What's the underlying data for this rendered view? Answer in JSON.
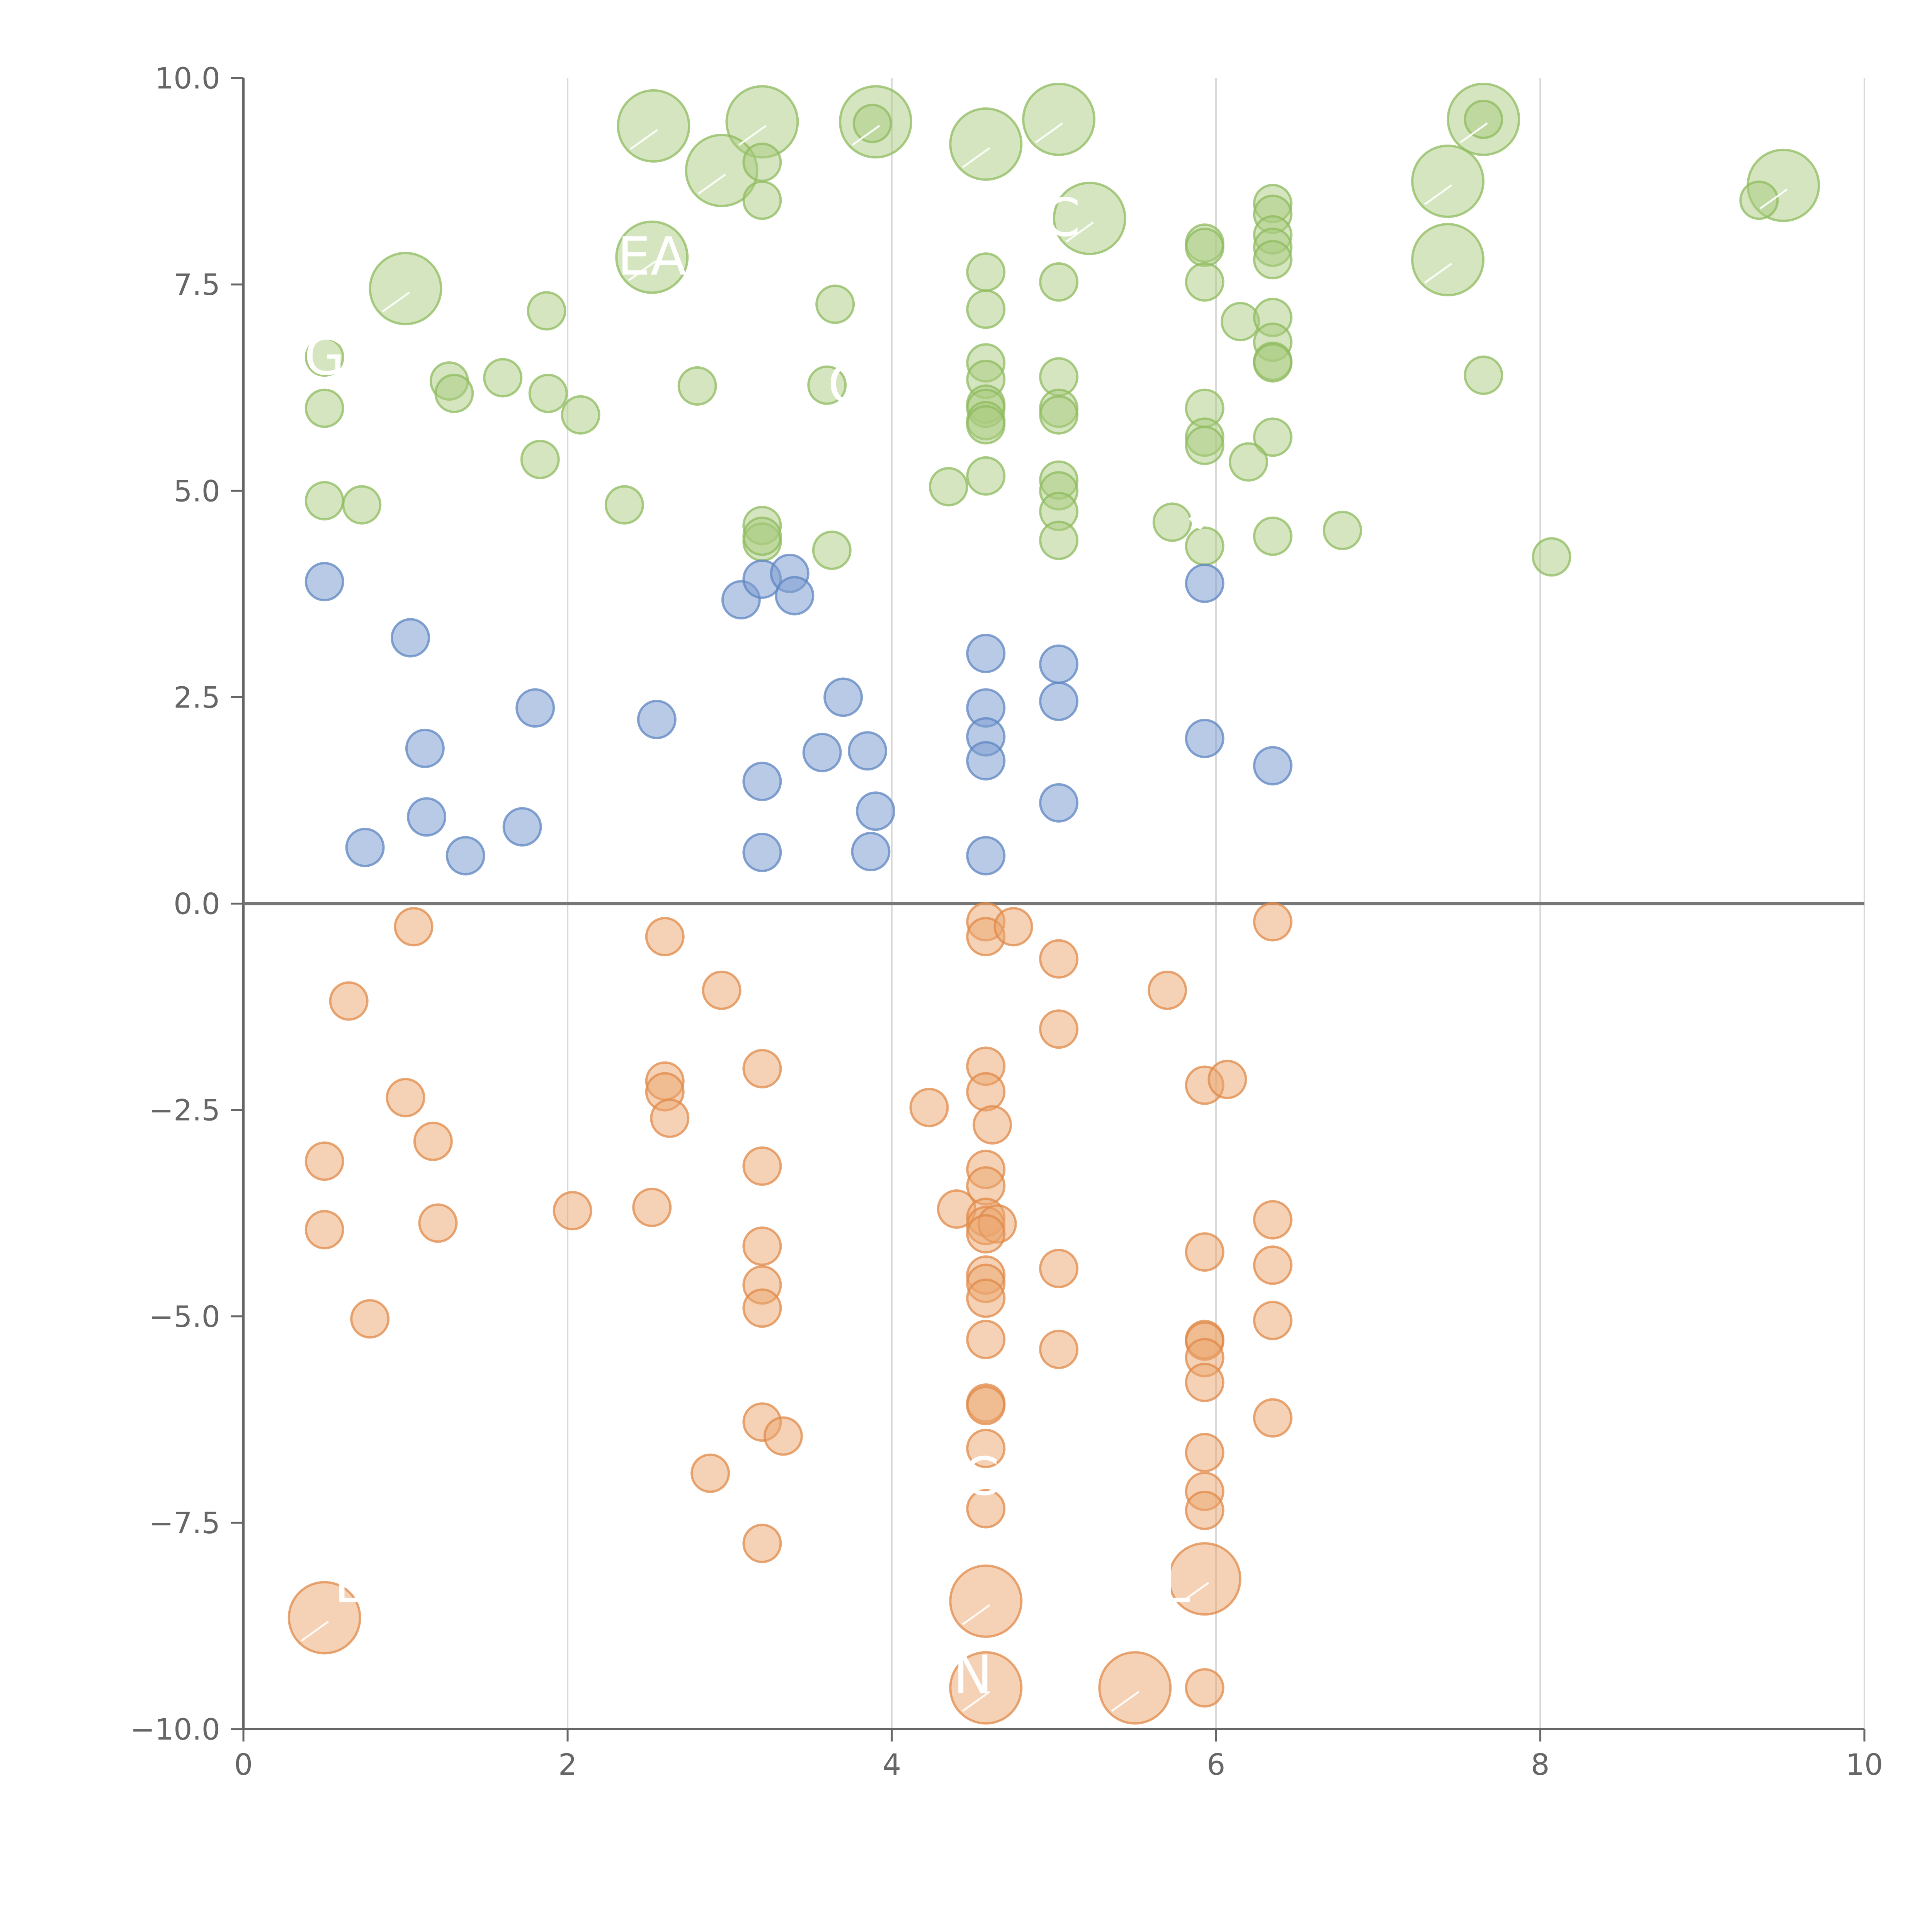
{
  "chart_data": {
    "type": "scatter",
    "title": "",
    "xlabel": "",
    "ylabel": "",
    "xlim": [
      0,
      10
    ],
    "ylim": [
      -10,
      10
    ],
    "x_ticks": [
      "0",
      "2",
      "4",
      "6",
      "8",
      "10"
    ],
    "y_ticks": [
      "10.0",
      "7.5",
      "5.0",
      "2.5",
      "0.0",
      "−2.5",
      "−5.0",
      "−7.5",
      "−10.0"
    ],
    "y_tick_values": [
      10,
      7.5,
      5,
      2.5,
      0,
      -2.5,
      -5,
      -7.5,
      -10
    ],
    "x_tick_values": [
      0,
      2,
      4,
      6,
      8,
      10
    ],
    "grid": "vertical",
    "zero_line": true,
    "legend": "none",
    "series": [
      {
        "name": "green",
        "color": "#a9cc7f",
        "stroke": "#8fbb5f",
        "points": [
          [
            2.53,
            9.42,
            "l"
          ],
          [
            3.2,
            9.47,
            "l"
          ],
          [
            2.95,
            8.88,
            "l"
          ],
          [
            3.9,
            9.47,
            "l"
          ],
          [
            3.88,
            9.45,
            "s"
          ],
          [
            4.58,
            9.2,
            "l"
          ],
          [
            5.03,
            9.5,
            "l"
          ],
          [
            5.22,
            8.3,
            "l"
          ],
          [
            7.65,
            9.5,
            "l"
          ],
          [
            7.65,
            9.5,
            "s"
          ],
          [
            7.43,
            8.75,
            "l"
          ],
          [
            7.43,
            7.8,
            "l"
          ],
          [
            9.5,
            8.7,
            "l"
          ],
          [
            9.35,
            8.52,
            "s"
          ],
          [
            1.0,
            7.45,
            "l"
          ],
          [
            2.52,
            7.83,
            "l"
          ],
          [
            3.2,
            8.98,
            "s"
          ],
          [
            3.2,
            8.52,
            "s"
          ],
          [
            1.87,
            7.18,
            "s"
          ],
          [
            3.65,
            7.26,
            "s"
          ],
          [
            4.58,
            7.65,
            "s"
          ],
          [
            4.58,
            7.2,
            "s"
          ],
          [
            5.03,
            7.53,
            "s"
          ],
          [
            5.93,
            8.0,
            "s"
          ],
          [
            5.93,
            7.95,
            "s"
          ],
          [
            5.93,
            7.53,
            "s"
          ],
          [
            6.35,
            8.48,
            "s"
          ],
          [
            6.35,
            8.35,
            "s"
          ],
          [
            6.35,
            8.1,
            "s"
          ],
          [
            6.35,
            7.95,
            "s"
          ],
          [
            6.35,
            7.8,
            "s"
          ],
          [
            6.15,
            7.05,
            "s"
          ],
          [
            6.35,
            7.1,
            "s"
          ],
          [
            0.5,
            6.62,
            "s"
          ],
          [
            0.5,
            6.0,
            "s"
          ],
          [
            1.27,
            6.33,
            "s"
          ],
          [
            1.3,
            6.18,
            "s"
          ],
          [
            1.6,
            6.37,
            "s"
          ],
          [
            1.88,
            6.18,
            "s"
          ],
          [
            2.08,
            5.92,
            "s"
          ],
          [
            2.8,
            6.27,
            "s"
          ],
          [
            3.6,
            6.28,
            "s"
          ],
          [
            4.58,
            6.55,
            "s"
          ],
          [
            4.58,
            6.35,
            "s"
          ],
          [
            4.58,
            6.05,
            "s"
          ],
          [
            4.58,
            6.0,
            "s"
          ],
          [
            4.58,
            5.85,
            "s"
          ],
          [
            4.58,
            5.8,
            "s"
          ],
          [
            5.03,
            6.38,
            "s"
          ],
          [
            5.03,
            6.0,
            "s"
          ],
          [
            5.03,
            5.92,
            "s"
          ],
          [
            5.93,
            6.0,
            "s"
          ],
          [
            5.93,
            5.65,
            "s"
          ],
          [
            5.93,
            5.55,
            "s"
          ],
          [
            6.35,
            6.8,
            "s"
          ],
          [
            6.35,
            6.57,
            "s"
          ],
          [
            6.35,
            6.55,
            "s"
          ],
          [
            6.35,
            5.65,
            "s"
          ],
          [
            6.2,
            5.35,
            "s"
          ],
          [
            7.65,
            6.4,
            "s"
          ],
          [
            0.5,
            4.88,
            "s"
          ],
          [
            0.73,
            4.83,
            "s"
          ],
          [
            1.83,
            5.38,
            "s"
          ],
          [
            2.35,
            4.83,
            "s"
          ],
          [
            3.2,
            4.58,
            "s"
          ],
          [
            3.2,
            4.38,
            "s"
          ],
          [
            3.2,
            4.45,
            "s"
          ],
          [
            3.63,
            4.28,
            "s"
          ],
          [
            4.35,
            5.05,
            "s"
          ],
          [
            4.58,
            5.18,
            "s"
          ],
          [
            5.03,
            5.13,
            "s"
          ],
          [
            5.03,
            5.0,
            "s"
          ],
          [
            5.03,
            4.75,
            "s"
          ],
          [
            5.03,
            4.4,
            "s"
          ],
          [
            5.73,
            4.62,
            "s"
          ],
          [
            5.93,
            4.33,
            "s"
          ],
          [
            6.35,
            4.45,
            "s"
          ],
          [
            6.78,
            4.52,
            "s"
          ],
          [
            8.07,
            4.2,
            "s"
          ]
        ]
      },
      {
        "name": "blue",
        "color": "#7d9fd1",
        "stroke": "#5f86c2",
        "points": [
          [
            0.5,
            3.9
          ],
          [
            1.03,
            3.22
          ],
          [
            1.12,
            1.88
          ],
          [
            1.13,
            1.05
          ],
          [
            0.75,
            0.68
          ],
          [
            1.37,
            0.58
          ],
          [
            1.8,
            2.37
          ],
          [
            1.72,
            0.93
          ],
          [
            2.55,
            2.23
          ],
          [
            3.07,
            3.68
          ],
          [
            3.2,
            3.93
          ],
          [
            3.37,
            4.0
          ],
          [
            3.4,
            3.73
          ],
          [
            3.7,
            2.5
          ],
          [
            3.57,
            1.83
          ],
          [
            3.85,
            1.85
          ],
          [
            3.2,
            1.48
          ],
          [
            3.9,
            1.12
          ],
          [
            3.2,
            0.62
          ],
          [
            3.87,
            0.63
          ],
          [
            4.58,
            3.03
          ],
          [
            4.58,
            2.37
          ],
          [
            4.58,
            2.02
          ],
          [
            4.58,
            1.73
          ],
          [
            4.58,
            0.58
          ],
          [
            5.03,
            2.9
          ],
          [
            5.03,
            2.45
          ],
          [
            5.03,
            1.22
          ],
          [
            5.93,
            3.88
          ],
          [
            5.93,
            2.0
          ],
          [
            6.35,
            1.67
          ]
        ]
      },
      {
        "name": "orange",
        "color": "#eca56e",
        "stroke": "#e08a48",
        "points": [
          [
            1.05,
            -0.28,
            "s"
          ],
          [
            0.65,
            -1.18,
            "s"
          ],
          [
            1.0,
            -2.35,
            "s"
          ],
          [
            1.17,
            -2.88,
            "s"
          ],
          [
            0.5,
            -3.12,
            "s"
          ],
          [
            0.5,
            -3.95,
            "s"
          ],
          [
            1.2,
            -3.87,
            "s"
          ],
          [
            0.78,
            -5.03,
            "s"
          ],
          [
            2.03,
            -3.72,
            "s"
          ],
          [
            2.52,
            -3.68,
            "s"
          ],
          [
            2.6,
            -0.4,
            "s"
          ],
          [
            2.95,
            -1.05,
            "s"
          ],
          [
            2.6,
            -2.15,
            "s"
          ],
          [
            2.6,
            -2.28,
            "s"
          ],
          [
            2.63,
            -2.6,
            "s"
          ],
          [
            2.88,
            -6.9,
            "s"
          ],
          [
            3.2,
            -2.0,
            "s"
          ],
          [
            3.2,
            -3.18,
            "s"
          ],
          [
            3.2,
            -4.15,
            "s"
          ],
          [
            3.2,
            -4.62,
            "s"
          ],
          [
            3.2,
            -4.9,
            "s"
          ],
          [
            3.2,
            -6.28,
            "s"
          ],
          [
            3.33,
            -6.45,
            "s"
          ],
          [
            3.2,
            -7.75,
            "s"
          ],
          [
            4.23,
            -2.47,
            "s"
          ],
          [
            4.4,
            -3.7,
            "s"
          ],
          [
            4.58,
            -0.22,
            "s"
          ],
          [
            4.58,
            -0.4,
            "s"
          ],
          [
            4.75,
            -0.28,
            "s"
          ],
          [
            4.58,
            -1.97,
            "s"
          ],
          [
            4.58,
            -2.28,
            "s"
          ],
          [
            4.62,
            -2.68,
            "s"
          ],
          [
            4.58,
            -3.22,
            "s"
          ],
          [
            4.58,
            -3.42,
            "s"
          ],
          [
            4.58,
            -3.8,
            "s"
          ],
          [
            4.58,
            -3.9,
            "s"
          ],
          [
            4.65,
            -3.88,
            "s"
          ],
          [
            4.58,
            -4.0,
            "s"
          ],
          [
            4.58,
            -4.5,
            "s"
          ],
          [
            4.58,
            -4.6,
            "s"
          ],
          [
            4.58,
            -4.78,
            "s"
          ],
          [
            4.58,
            -5.28,
            "s"
          ],
          [
            4.58,
            -6.05,
            "s"
          ],
          [
            4.58,
            -6.08,
            "s"
          ],
          [
            4.58,
            -6.6,
            "s"
          ],
          [
            4.58,
            -7.33,
            "s"
          ],
          [
            5.03,
            -0.67,
            "s"
          ],
          [
            5.03,
            -1.52,
            "s"
          ],
          [
            5.03,
            -4.42,
            "s"
          ],
          [
            5.03,
            -5.4,
            "s"
          ],
          [
            5.7,
            -1.05,
            "s"
          ],
          [
            5.93,
            -2.2,
            "s"
          ],
          [
            6.07,
            -2.13,
            "s"
          ],
          [
            5.93,
            -4.22,
            "s"
          ],
          [
            5.93,
            -5.28,
            "s"
          ],
          [
            5.93,
            -5.3,
            "s"
          ],
          [
            5.93,
            -5.5,
            "s"
          ],
          [
            5.93,
            -5.8,
            "s"
          ],
          [
            5.93,
            -6.65,
            "s"
          ],
          [
            5.93,
            -7.12,
            "s"
          ],
          [
            5.93,
            -7.35,
            "s"
          ],
          [
            5.93,
            -9.5,
            "s"
          ],
          [
            6.35,
            -0.22,
            "s"
          ],
          [
            6.35,
            -3.83,
            "s"
          ],
          [
            6.35,
            -4.38,
            "s"
          ],
          [
            6.35,
            -5.05,
            "s"
          ],
          [
            6.35,
            -6.23,
            "s"
          ],
          [
            0.5,
            -8.65,
            "l"
          ],
          [
            4.58,
            -8.45,
            "l"
          ],
          [
            4.58,
            -9.5,
            "l"
          ],
          [
            5.5,
            -9.5,
            "l"
          ],
          [
            5.93,
            -8.18,
            "l"
          ]
        ]
      }
    ],
    "annotations": [
      {
        "text": "G",
        "x": 0.5,
        "y": 6.62
      },
      {
        "text": "EA",
        "x": 2.52,
        "y": 7.83
      },
      {
        "text": "C",
        "x": 5.05,
        "y": 8.3
      },
      {
        "text": "OI",
        "x": 3.78,
        "y": 6.28
      },
      {
        "text": "↓",
        "x": 5.9,
        "y": 4.75
      },
      {
        "text": "C",
        "x": 4.55,
        "y": -6.95
      },
      {
        "text": "L",
        "x": 0.65,
        "y": -8.25
      },
      {
        "text": "L",
        "x": 5.75,
        "y": -8.25
      },
      {
        "text": "N",
        "x": 4.5,
        "y": -9.35
      }
    ]
  }
}
